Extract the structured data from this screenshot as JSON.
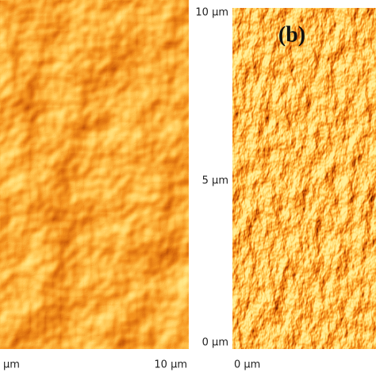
{
  "panel_a": {
    "x_axis": {
      "start_label": "μm",
      "end_label": "10 μm"
    }
  },
  "panel_b": {
    "label": "(b)",
    "y_axis": {
      "top_label": "10 μm",
      "mid_label": "5 μm",
      "bottom_label": "0 μm"
    },
    "x_axis": {
      "start_label": "0 μm"
    }
  }
}
